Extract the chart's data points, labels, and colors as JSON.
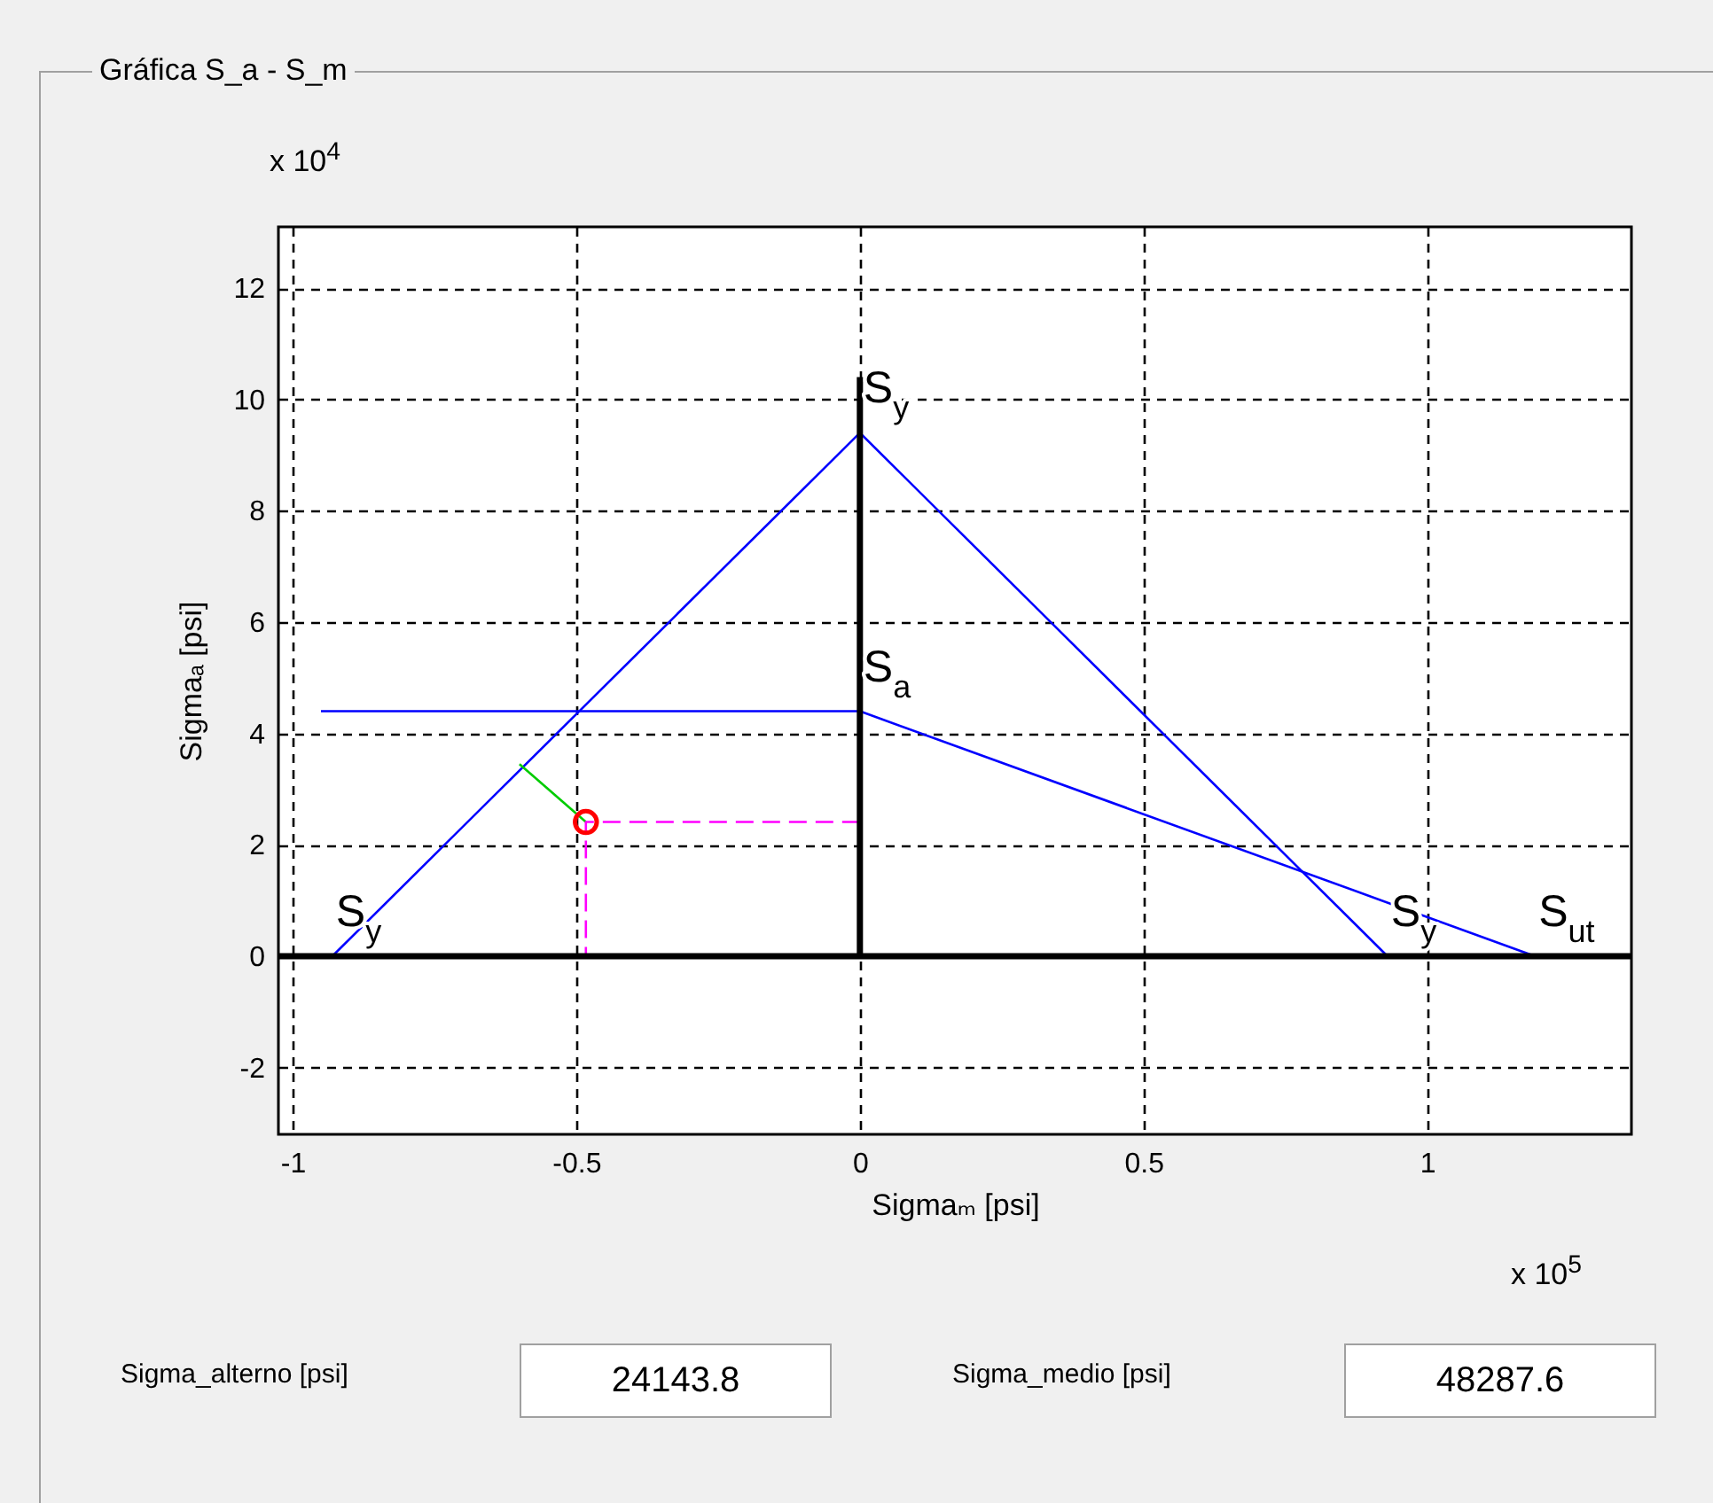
{
  "chart_data": {
    "type": "line",
    "title": "Gráfica S_a - S_m",
    "xlabel": "Sigmaₘ [psi]",
    "ylabel": "Sigmaₐ [psi]",
    "xlim": [
      -1.025,
      1.36
    ],
    "ylim": [
      -3.2,
      13.1
    ],
    "xticks": [
      -1,
      -0.5,
      0,
      0.5,
      1
    ],
    "yticks": [
      -2,
      0,
      2,
      4,
      6,
      8,
      10,
      12
    ],
    "grid": true,
    "series": [
      {
        "color": "#0000ff",
        "x": [
          -0.93,
          0,
          0.93
        ],
        "values": [
          0,
          9.4,
          0
        ]
      },
      {
        "color": "#0000ff",
        "x": [
          -0.95,
          0,
          1.19
        ],
        "values": [
          4.4,
          4.4,
          0
        ]
      },
      {
        "color": "#00cc00",
        "x": [
          -0.6,
          -0.483
        ],
        "values": [
          3.45,
          2.41
        ]
      },
      {
        "color": "#ff00ff",
        "line_style": "dashed",
        "x": [
          0,
          -0.483,
          -0.483
        ],
        "values": [
          2.41,
          2.41,
          0
        ]
      },
      {
        "color": "#000000",
        "x": [
          0,
          0
        ],
        "values": [
          0,
          10.4
        ]
      },
      {
        "type": "scatter",
        "color": "#ff0000",
        "marker": "circle",
        "x": [
          -0.483
        ],
        "values": [
          2.41
        ]
      }
    ],
    "ref_lines": [
      {
        "axis": "y",
        "value": 0,
        "color": "#000000"
      }
    ],
    "annotations": [
      "x 10$^{4}$",
      "x 10$^{5}$",
      "Sigma_alterno [psi]",
      "24143.8",
      "Sigma_medio [psi]",
      "48287.6",
      {
        "text": "S$_{y}$",
        "x": 0,
        "y": 9.4
      },
      {
        "text": "S$_{a}$",
        "x": 0,
        "y": 4.4
      },
      {
        "text": "S$_{y}$",
        "x": -0.93,
        "y": 0
      },
      {
        "text": "S$_{y}$",
        "x": 0.93,
        "y": 0
      },
      {
        "text": "S$_{ut}$",
        "x": 1.19,
        "y": 0
      }
    ]
  }
}
